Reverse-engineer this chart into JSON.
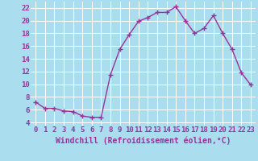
{
  "x": [
    0,
    1,
    2,
    3,
    4,
    5,
    6,
    7,
    8,
    9,
    10,
    11,
    12,
    13,
    14,
    15,
    16,
    17,
    18,
    19,
    20,
    21,
    22,
    23
  ],
  "y": [
    7.2,
    6.2,
    6.2,
    5.8,
    5.7,
    5.0,
    4.8,
    4.8,
    11.5,
    15.5,
    17.8,
    19.9,
    20.5,
    21.3,
    21.3,
    22.2,
    20.0,
    18.0,
    18.8,
    20.8,
    18.0,
    15.5,
    11.8,
    9.9
  ],
  "line_color": "#993399",
  "marker": "+",
  "bg_color": "#aaddee",
  "grid_color": "#ffffff",
  "xlabel": "Windchill (Refroidissement éolien,°C)",
  "xlabel_color": "#993399",
  "tick_color": "#993399",
  "ylim": [
    3.5,
    23.0
  ],
  "xlim": [
    -0.5,
    23.5
  ],
  "yticks": [
    4,
    6,
    8,
    10,
    12,
    14,
    16,
    18,
    20,
    22
  ],
  "xtick_labels": [
    "0",
    "1",
    "2",
    "3",
    "4",
    "5",
    "6",
    "7",
    "8",
    "9",
    "10",
    "11",
    "12",
    "13",
    "14",
    "15",
    "16",
    "17",
    "18",
    "19",
    "20",
    "21",
    "22",
    "23"
  ],
  "font_size": 6.5,
  "marker_size": 4,
  "line_width": 1.0,
  "markeredgewidth": 1.0
}
